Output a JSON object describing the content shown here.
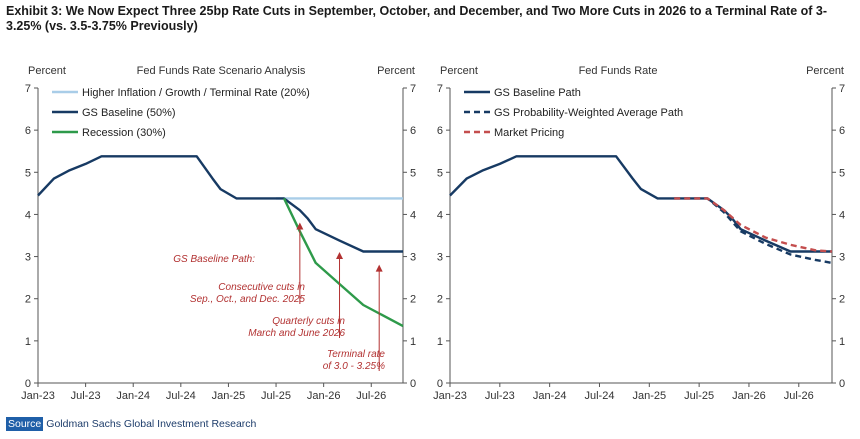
{
  "title": "Exhibit 3: We Now Expect Three 25bp Rate Cuts in September, October, and December, and Two More Cuts in 2026 to a Terminal Rate of 3-3.25% (vs. 3.5-3.75% Previously)",
  "source": {
    "label": "Source",
    "text": "Goldman Sachs Global Investment Research"
  },
  "colors": {
    "navy": "#173a63",
    "light_blue": "#a9cde8",
    "green": "#2e9a4a",
    "red_dash": "#c44e4e",
    "annotation": "#b23232",
    "axis": "#555555"
  },
  "chart_data": [
    {
      "id": "left",
      "type": "line",
      "title": "Fed Funds Rate Scenario Analysis",
      "ylabel_left": "Percent",
      "ylabel_right": "Percent",
      "ylim": [
        0,
        7
      ],
      "yticks": [
        "0",
        "1",
        "2",
        "3",
        "4",
        "5",
        "6",
        "7"
      ],
      "x_range": [
        "2023-01",
        "2026-11"
      ],
      "xticks": [
        {
          "label": "Jan-23",
          "date": "2023-01"
        },
        {
          "label": "Jul-23",
          "date": "2023-07"
        },
        {
          "label": "Jan-24",
          "date": "2024-01"
        },
        {
          "label": "Jul-24",
          "date": "2024-07"
        },
        {
          "label": "Jan-25",
          "date": "2025-01"
        },
        {
          "label": "Jul-25",
          "date": "2025-07"
        },
        {
          "label": "Jan-26",
          "date": "2026-01"
        },
        {
          "label": "Jul-26",
          "date": "2026-07"
        }
      ],
      "grid": false,
      "legend_position": "top-left",
      "series": [
        {
          "name": "Higher Inflation / Growth / Terminal Rate (20%)",
          "color": "#a9cde8",
          "dash": false,
          "points": [
            [
              "2025-07",
              4.38
            ],
            [
              "2026-11",
              4.38
            ]
          ]
        },
        {
          "name": "GS Baseline (50%)",
          "color": "#173a63",
          "dash": false,
          "points": [
            [
              "2023-01",
              4.45
            ],
            [
              "2023-03",
              4.85
            ],
            [
              "2023-05",
              5.05
            ],
            [
              "2023-07",
              5.2
            ],
            [
              "2023-09",
              5.38
            ],
            [
              "2024-09",
              5.38
            ],
            [
              "2024-11",
              4.85
            ],
            [
              "2024-12",
              4.6
            ],
            [
              "2025-02",
              4.38
            ],
            [
              "2025-08",
              4.38
            ],
            [
              "2025-10",
              4.1
            ],
            [
              "2025-11",
              3.9
            ],
            [
              "2025-12",
              3.65
            ],
            [
              "2026-03",
              3.38
            ],
            [
              "2026-06",
              3.12
            ],
            [
              "2026-11",
              3.12
            ]
          ]
        },
        {
          "name": "Recession (30%)",
          "color": "#2e9a4a",
          "dash": false,
          "points": [
            [
              "2025-08",
              4.38
            ],
            [
              "2025-10",
              3.6
            ],
            [
              "2025-12",
              2.85
            ],
            [
              "2026-03",
              2.35
            ],
            [
              "2026-06",
              1.85
            ],
            [
              "2026-11",
              1.35
            ]
          ]
        }
      ],
      "annotations": [
        {
          "lines": [
            "GS Baseline Path:"
          ],
          "arrow_date": null
        },
        {
          "lines": [
            "Consecutive cuts in",
            "Sep., Oct., and Dec. 2025"
          ],
          "arrow_date": "2025-10",
          "arrow_value": 3.95
        },
        {
          "lines": [
            "Quarterly cuts in",
            "March and June 2026"
          ],
          "arrow_date": "2026-03",
          "arrow_value": 3.25
        },
        {
          "lines": [
            "Terminal rate",
            "of 3.0 - 3.25%"
          ],
          "arrow_date": "2026-08",
          "arrow_value": 2.95
        }
      ]
    },
    {
      "id": "right",
      "type": "line",
      "title": "Fed Funds Rate",
      "ylabel_left": "Percent",
      "ylabel_right": "Percent",
      "ylim": [
        0,
        7
      ],
      "yticks": [
        "0",
        "1",
        "2",
        "3",
        "4",
        "5",
        "6",
        "7"
      ],
      "x_range": [
        "2023-01",
        "2026-11"
      ],
      "xticks": [
        {
          "label": "Jan-23",
          "date": "2023-01"
        },
        {
          "label": "Jul-23",
          "date": "2023-07"
        },
        {
          "label": "Jan-24",
          "date": "2024-01"
        },
        {
          "label": "Jul-24",
          "date": "2024-07"
        },
        {
          "label": "Jan-25",
          "date": "2025-01"
        },
        {
          "label": "Jul-25",
          "date": "2025-07"
        },
        {
          "label": "Jan-26",
          "date": "2026-01"
        },
        {
          "label": "Jul-26",
          "date": "2026-07"
        }
      ],
      "grid": false,
      "legend_position": "top-left",
      "series": [
        {
          "name": "GS Baseline Path",
          "color": "#173a63",
          "dash": false,
          "points": [
            [
              "2023-01",
              4.45
            ],
            [
              "2023-03",
              4.85
            ],
            [
              "2023-05",
              5.05
            ],
            [
              "2023-07",
              5.2
            ],
            [
              "2023-09",
              5.38
            ],
            [
              "2024-09",
              5.38
            ],
            [
              "2024-11",
              4.85
            ],
            [
              "2024-12",
              4.6
            ],
            [
              "2025-02",
              4.38
            ],
            [
              "2025-08",
              4.38
            ],
            [
              "2025-10",
              4.1
            ],
            [
              "2025-11",
              3.9
            ],
            [
              "2025-12",
              3.65
            ],
            [
              "2026-03",
              3.38
            ],
            [
              "2026-06",
              3.12
            ],
            [
              "2026-11",
              3.12
            ]
          ]
        },
        {
          "name": "GS Probability-Weighted Average Path",
          "color": "#173a63",
          "dash": true,
          "points": [
            [
              "2025-04",
              4.38
            ],
            [
              "2025-08",
              4.38
            ],
            [
              "2025-10",
              4.05
            ],
            [
              "2025-12",
              3.6
            ],
            [
              "2026-03",
              3.3
            ],
            [
              "2026-06",
              3.05
            ],
            [
              "2026-09",
              2.92
            ],
            [
              "2026-11",
              2.85
            ]
          ]
        },
        {
          "name": "Market Pricing",
          "color": "#c44e4e",
          "dash": true,
          "points": [
            [
              "2025-04",
              4.38
            ],
            [
              "2025-08",
              4.38
            ],
            [
              "2025-10",
              4.1
            ],
            [
              "2025-12",
              3.75
            ],
            [
              "2026-03",
              3.45
            ],
            [
              "2026-06",
              3.28
            ],
            [
              "2026-09",
              3.15
            ],
            [
              "2026-11",
              3.12
            ]
          ]
        }
      ],
      "annotations": []
    }
  ]
}
